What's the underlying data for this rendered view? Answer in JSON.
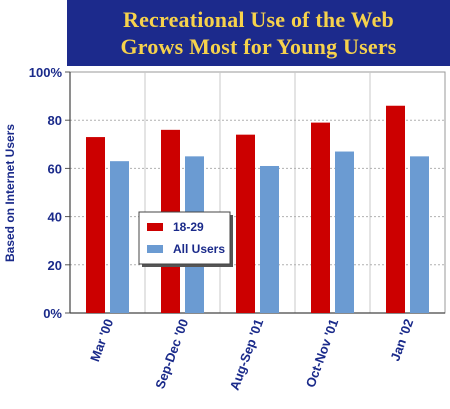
{
  "chart_data": {
    "type": "bar",
    "title_lines": [
      "Recreational Use of the Web",
      "Grows Most for Young Users"
    ],
    "ylabel": "Based on Internet Users",
    "xlabel": "",
    "categories": [
      "Mar '00",
      "Sep-Dec '00",
      "Aug-Sep '01",
      "Oct-Nov '01",
      "Jan '02"
    ],
    "series": [
      {
        "name": "18-29",
        "values": [
          73,
          76,
          74,
          79,
          86
        ],
        "color": "#cc0000"
      },
      {
        "name": "All Users",
        "values": [
          63,
          65,
          61,
          67,
          65
        ],
        "color": "#6b9bd2"
      }
    ],
    "ylim": [
      0,
      100
    ],
    "yticks": [
      {
        "value": 0,
        "label": "0%"
      },
      {
        "value": 20,
        "label": "20"
      },
      {
        "value": 40,
        "label": "40"
      },
      {
        "value": 60,
        "label": "60"
      },
      {
        "value": 80,
        "label": "80"
      },
      {
        "value": 100,
        "label": "100%"
      }
    ],
    "grid": true,
    "legend_position": "middle-left"
  }
}
